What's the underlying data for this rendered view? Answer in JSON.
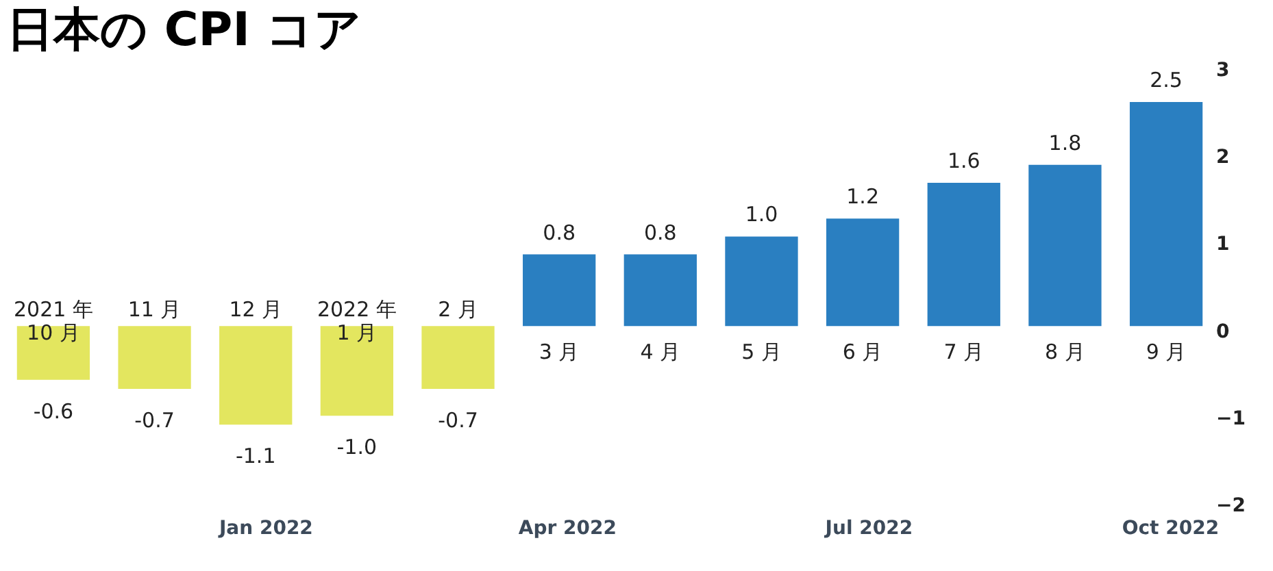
{
  "chart_data": {
    "type": "bar",
    "title": "日本の CPI コア",
    "categories": [
      "2021 年\n10 月",
      "11 月",
      "12 月",
      "2022 年\n1 月",
      "2 月",
      "3 月",
      "4 月",
      "5 月",
      "6 月",
      "7 月",
      "8 月",
      "9 月"
    ],
    "values": [
      -0.6,
      -0.7,
      -1.1,
      -1.0,
      -0.7,
      0.8,
      0.8,
      1.0,
      1.2,
      1.6,
      1.8,
      2.5
    ],
    "colors": [
      "#e3e65f",
      "#e3e65f",
      "#e3e65f",
      "#e3e65f",
      "#e3e65f",
      "#2a7fc1",
      "#2a7fc1",
      "#2a7fc1",
      "#2a7fc1",
      "#2a7fc1",
      "#2a7fc1",
      "#2a7fc1"
    ],
    "value_labels": [
      "-0.6",
      "-0.7",
      "-1.1",
      "-1.0",
      "-0.7",
      "0.8",
      "0.8",
      "1.0",
      "1.2",
      "1.6",
      "1.8",
      "2.5"
    ],
    "y2lim": [
      -2,
      3
    ],
    "y2ticks": [
      -2,
      -1,
      0,
      1,
      2,
      3
    ],
    "annotations": [
      "Jan 2022",
      "Apr 2022",
      "Jul 2022",
      "Oct 2022"
    ],
    "grid": false
  }
}
